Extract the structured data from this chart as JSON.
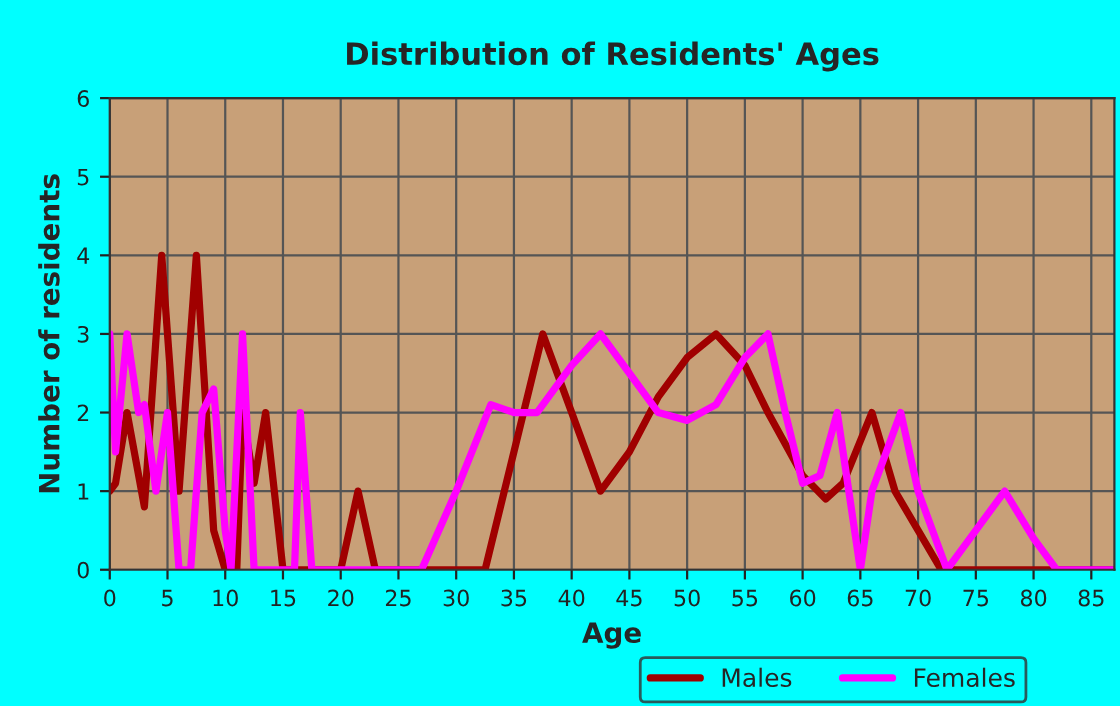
{
  "chart_data": {
    "type": "line",
    "title": "Distribution of Residents' Ages",
    "xlabel": "Age",
    "ylabel": "Number of residents",
    "xlim": [
      0,
      87
    ],
    "xticks": [
      0,
      5,
      10,
      15,
      20,
      25,
      30,
      35,
      40,
      45,
      50,
      55,
      60,
      65,
      70,
      75,
      80,
      85
    ],
    "ylim": [
      0,
      6
    ],
    "yticks": [
      0,
      1,
      2,
      3,
      4,
      5,
      6
    ],
    "grid": true,
    "legend": "bottom",
    "marker": "none",
    "line_style": "solid",
    "series": [
      {
        "name": "Males",
        "color": "#a00000",
        "x": [
          0,
          0.5,
          1.5,
          3,
          4.5,
          6,
          7.5,
          9,
          10,
          11,
          11.5,
          12.5,
          13.5,
          15,
          16,
          20,
          21.5,
          23,
          30,
          32.5,
          35,
          37.5,
          40,
          42.5,
          45,
          47.5,
          50,
          52.5,
          55,
          57,
          60,
          62,
          63.5,
          66,
          68,
          70,
          72,
          75,
          87
        ],
        "values": [
          1,
          1.1,
          2,
          0.8,
          4,
          1,
          4,
          0.5,
          0,
          0,
          2,
          1.1,
          2,
          0,
          0,
          0,
          1,
          0,
          0,
          0,
          1.5,
          3,
          2,
          1,
          1.5,
          2.2,
          2.7,
          3,
          2.6,
          2,
          1.2,
          0.9,
          1.1,
          2,
          1,
          0.5,
          0,
          0,
          0
        ]
      },
      {
        "name": "Females",
        "color": "#ff00ff",
        "x": [
          0,
          0.5,
          1.5,
          2.5,
          3,
          4,
          5,
          6,
          7,
          8,
          9,
          10,
          10.5,
          11.5,
          12.5,
          16,
          16.5,
          17.5,
          27,
          30,
          33,
          35,
          37,
          40,
          42.5,
          45,
          47.5,
          50,
          52.5,
          55,
          57,
          58.5,
          60,
          61.5,
          63,
          64,
          65,
          66,
          68.5,
          70,
          72.5,
          75,
          77.5,
          80,
          82,
          87
        ],
        "values": [
          3,
          1.5,
          3,
          2,
          2.1,
          1,
          2,
          0,
          0,
          2,
          2.3,
          0.5,
          0,
          3,
          0,
          0,
          2,
          0,
          0,
          1,
          2.1,
          2,
          2,
          2.6,
          3,
          2.5,
          2,
          1.9,
          2.1,
          2.7,
          3,
          2,
          1.1,
          1.2,
          2,
          1,
          0,
          1,
          2,
          1,
          0,
          0.5,
          1,
          0.4,
          0,
          0
        ]
      }
    ]
  }
}
